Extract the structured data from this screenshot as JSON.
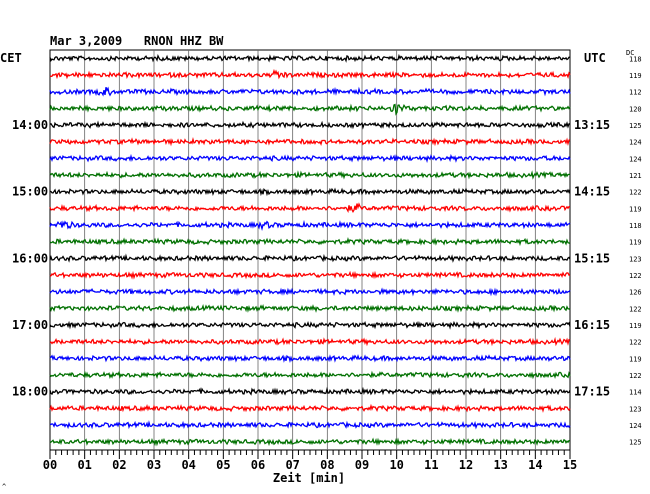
{
  "chart_data": {
    "type": "line",
    "title": "Mar 3,2009   RNON HHZ BW",
    "left_label": "CET",
    "right_label": "UTC",
    "dc_label": "DC",
    "xlabel": "Zeit [min]",
    "xlim": [
      0,
      15
    ],
    "x_ticks": [
      "00",
      "01",
      "02",
      "03",
      "04",
      "05",
      "06",
      "07",
      "08",
      "09",
      "10",
      "11",
      "12",
      "13",
      "14",
      "15"
    ],
    "grid": true,
    "trace_colors": [
      "#000000",
      "#ff0000",
      "#0000ff",
      "#007000"
    ],
    "cet_labels": [
      {
        "row": 4,
        "text": "14:00"
      },
      {
        "row": 8,
        "text": "15:00"
      },
      {
        "row": 12,
        "text": "16:00"
      },
      {
        "row": 16,
        "text": "17:00"
      },
      {
        "row": 20,
        "text": "18:00"
      }
    ],
    "utc_labels": [
      {
        "row": 4,
        "text": "13:15"
      },
      {
        "row": 8,
        "text": "14:15"
      },
      {
        "row": 12,
        "text": "15:15"
      },
      {
        "row": 16,
        "text": "16:15"
      },
      {
        "row": 20,
        "text": "17:15"
      }
    ],
    "dc_values": [
      118,
      119,
      112,
      120,
      125,
      124,
      124,
      121,
      122,
      119,
      118,
      119,
      123,
      122,
      126,
      122,
      119,
      122,
      119,
      122,
      114,
      123,
      124,
      125
    ],
    "events": [
      {
        "row": 1,
        "minute": 6.6,
        "amplitude": 3
      },
      {
        "row": 2,
        "minute": 1.6,
        "amplitude": 3
      },
      {
        "row": 3,
        "minute": 10.0,
        "amplitude": 5
      },
      {
        "row": 9,
        "minute": 8.8,
        "amplitude": 3
      },
      {
        "row": 10,
        "minute": 0.4,
        "amplitude": 3
      },
      {
        "row": 10,
        "minute": 6.2,
        "amplitude": 2
      }
    ],
    "footer_mark": "^"
  }
}
